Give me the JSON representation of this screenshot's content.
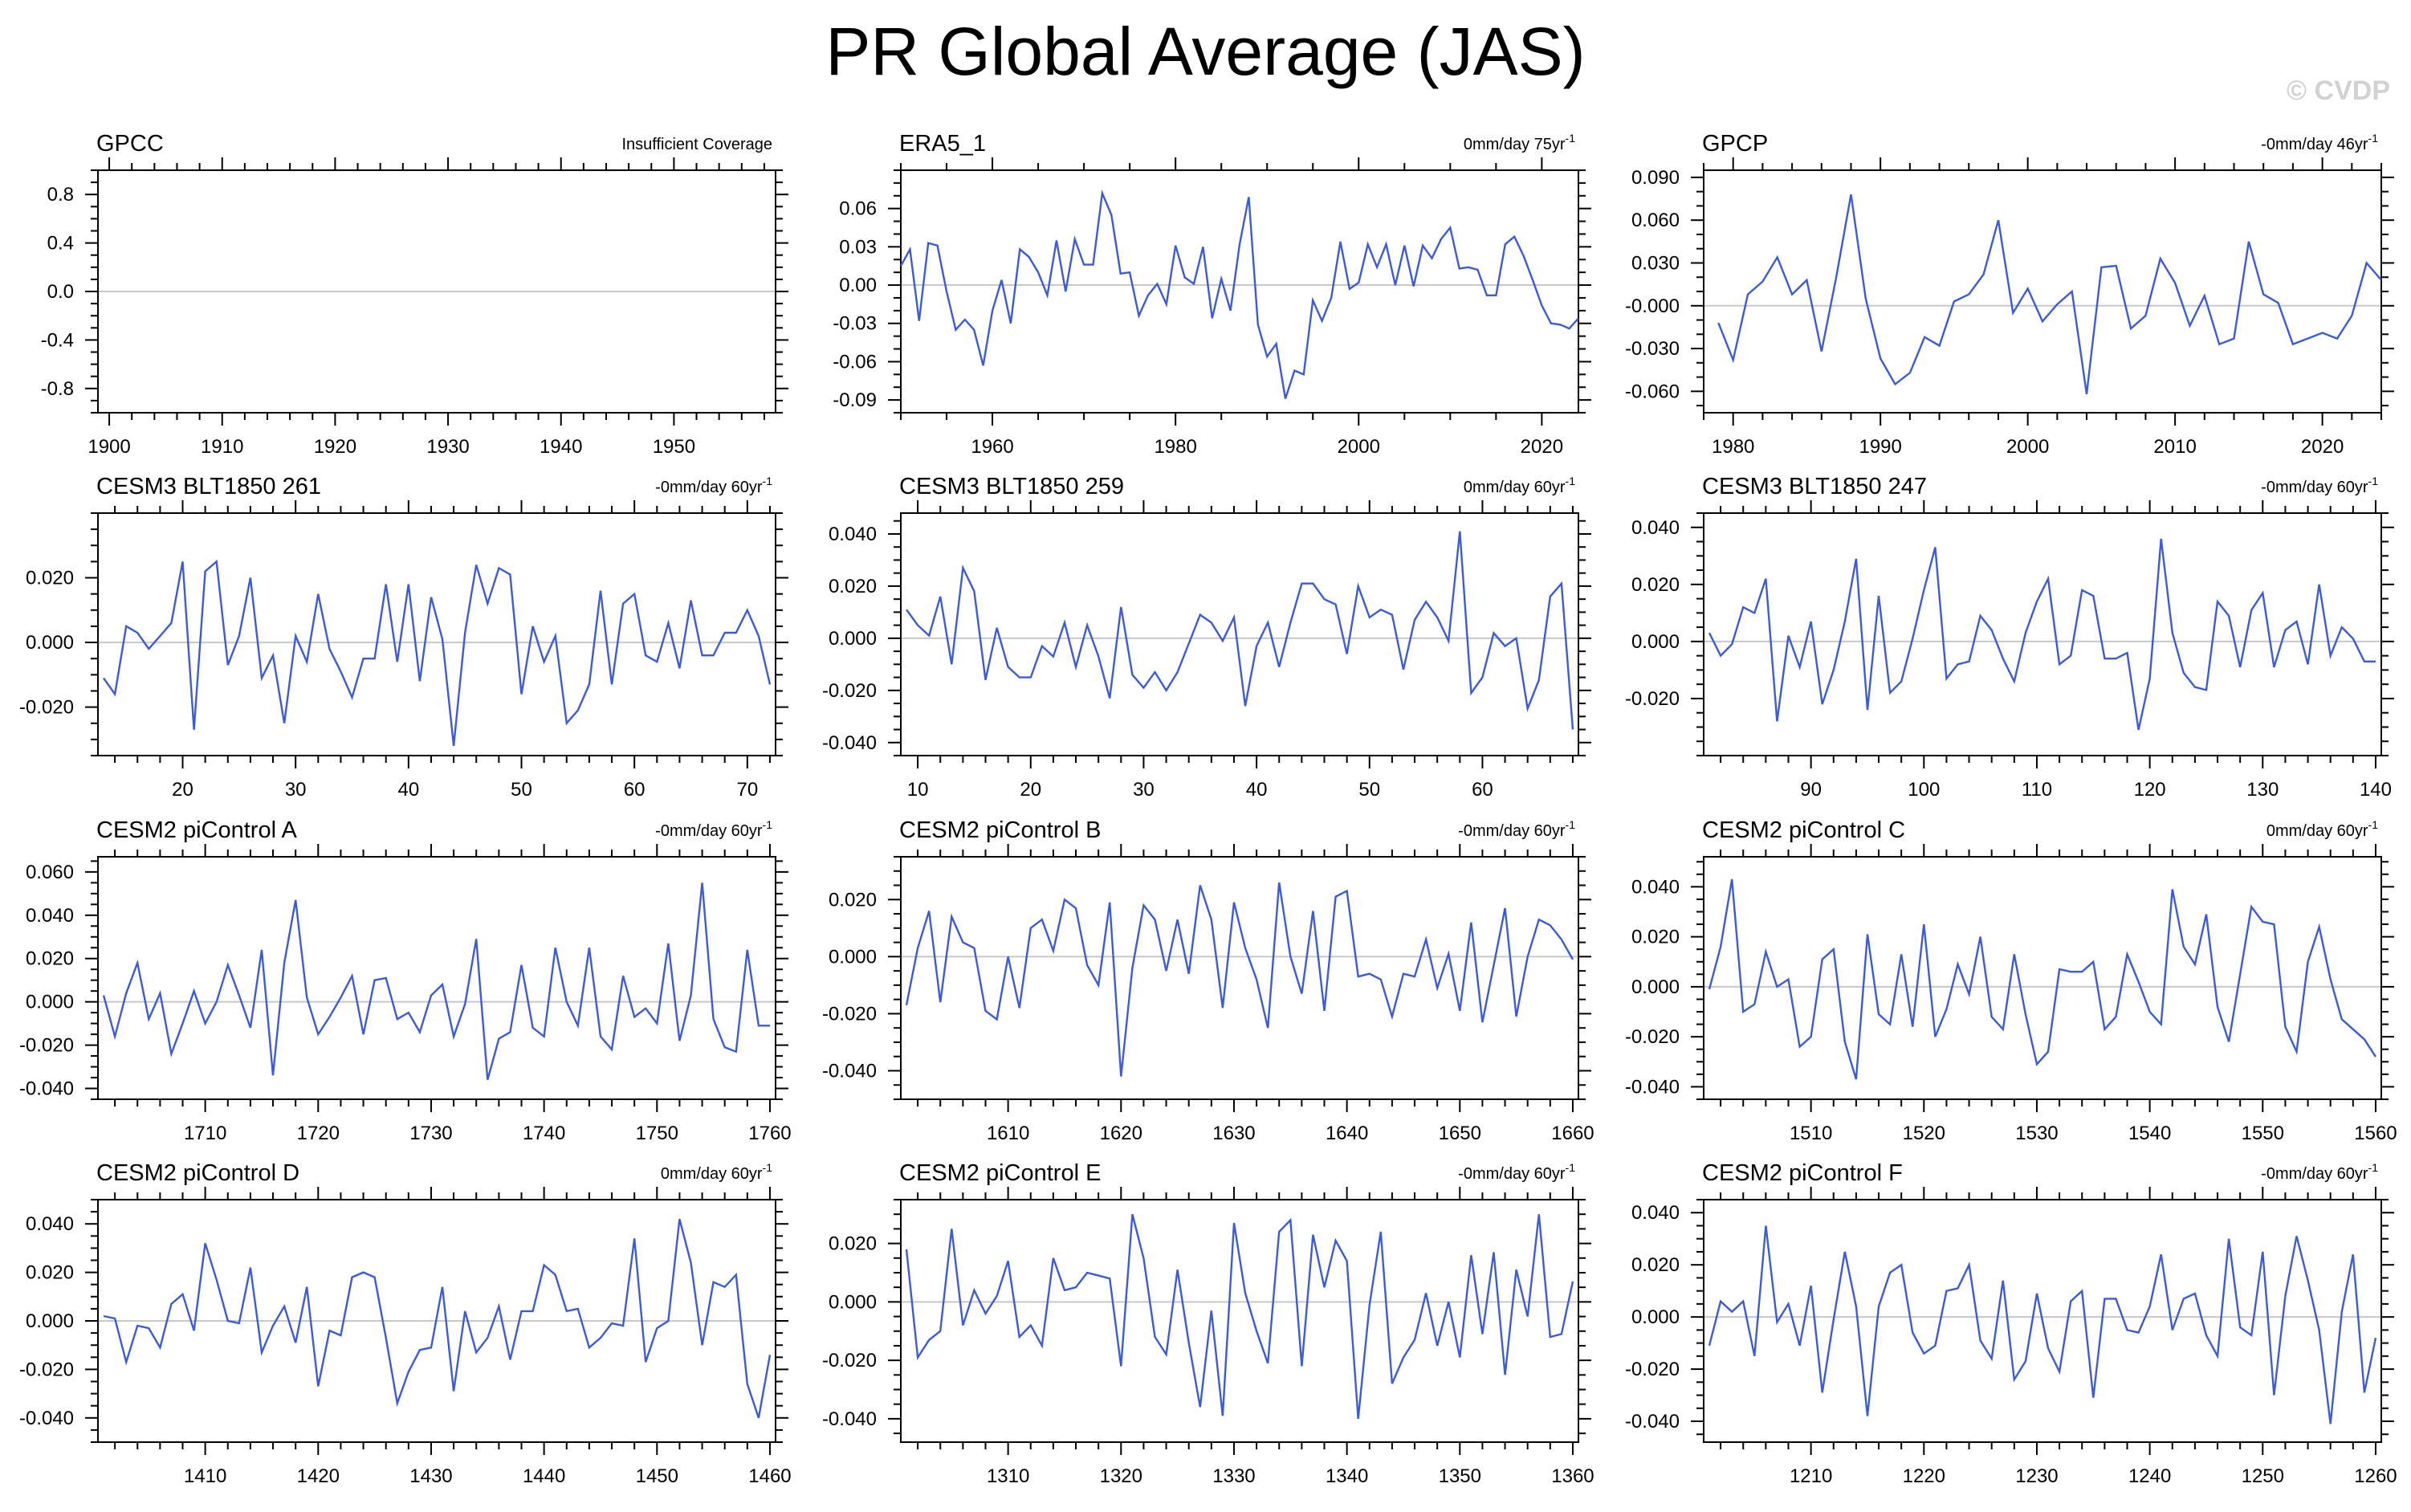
{
  "figure": {
    "title": "PR Global Average (JAS)",
    "watermark": "© CVDP",
    "line_color": "#3b5bdb",
    "zero_line_color": "#c8c8c8"
  },
  "chart_data": [
    {
      "type": "line",
      "title": "GPCC",
      "note": "Insufficient Coverage",
      "xlim": [
        1899,
        1959
      ],
      "ylim": [
        -1.0,
        1.0
      ],
      "yticks": [
        -0.8,
        -0.4,
        0.0,
        0.4,
        0.8
      ],
      "ytick_labels": [
        "-0.8",
        "-0.4",
        "0.0",
        "0.4",
        "0.8"
      ],
      "xticks": [
        1900,
        1910,
        1920,
        1930,
        1940,
        1950
      ],
      "xminor": 2,
      "yminor": 0.1,
      "x_start": 1900,
      "values": []
    },
    {
      "type": "line",
      "title": "ERA5_1",
      "note": "0mm/day 75yr",
      "note_sup": "-1",
      "xlim": [
        1950,
        2024
      ],
      "ylim": [
        -0.1,
        0.09
      ],
      "yticks": [
        -0.09,
        -0.06,
        -0.03,
        0.0,
        0.03,
        0.06
      ],
      "ytick_labels": [
        "-0.09",
        "-0.06",
        "-0.03",
        "0.00",
        "0.03",
        "0.06"
      ],
      "xticks": [
        1960,
        1980,
        2000,
        2020
      ],
      "xminor": 5,
      "yminor": 0.01,
      "x_start": 1950,
      "values": [
        0.015,
        0.028,
        -0.028,
        0.033,
        0.031,
        -0.005,
        -0.035,
        -0.027,
        -0.035,
        -0.063,
        -0.02,
        0.004,
        -0.03,
        0.028,
        0.022,
        0.01,
        -0.008,
        0.035,
        -0.005,
        0.036,
        0.016,
        0.016,
        0.072,
        0.055,
        0.009,
        0.01,
        -0.024,
        -0.008,
        0.001,
        -0.015,
        0.031,
        0.006,
        0.001,
        0.03,
        -0.026,
        0.005,
        -0.02,
        0.032,
        0.069,
        -0.031,
        -0.056,
        -0.046,
        -0.089,
        -0.067,
        -0.07,
        -0.012,
        -0.028,
        -0.01,
        0.034,
        -0.003,
        0.002,
        0.032,
        0.014,
        0.032,
        0.0,
        0.031,
        -0.001,
        0.031,
        0.021,
        0.036,
        0.045,
        0.013,
        0.014,
        0.012,
        -0.008,
        -0.008,
        0.032,
        0.038,
        0.023,
        0.004,
        -0.016,
        -0.03,
        -0.031,
        -0.034,
        -0.026
      ]
    },
    {
      "type": "line",
      "title": "GPCP",
      "note": "-0mm/day 46yr",
      "note_sup": "-1",
      "xlim": [
        1978,
        2024
      ],
      "ylim": [
        -0.075,
        0.095
      ],
      "yticks": [
        -0.06,
        -0.03,
        0.0,
        0.03,
        0.06,
        0.09
      ],
      "ytick_labels": [
        "-0.060",
        "-0.030",
        "-0.000",
        "0.030",
        "0.060",
        "0.090"
      ],
      "xticks": [
        1980,
        1990,
        2000,
        2010,
        2020
      ],
      "xminor": 2,
      "yminor": 0.01,
      "x_start": 1979,
      "values": [
        -0.012,
        -0.038,
        0.008,
        0.017,
        0.034,
        0.008,
        0.018,
        -0.032,
        0.02,
        0.078,
        0.005,
        -0.037,
        -0.055,
        -0.047,
        -0.022,
        -0.028,
        0.003,
        0.008,
        0.022,
        0.06,
        -0.005,
        0.012,
        -0.011,
        0.001,
        0.01,
        -0.062,
        0.027,
        0.028,
        -0.016,
        -0.007,
        0.033,
        0.016,
        -0.014,
        0.007,
        -0.027,
        -0.023,
        0.045,
        0.008,
        0.002,
        -0.027,
        -0.023,
        -0.019,
        -0.023,
        -0.007,
        0.03,
        0.018
      ]
    },
    {
      "type": "line",
      "title": "CESM3 BLT1850 261",
      "note": "-0mm/day 60yr",
      "note_sup": "-1",
      "xlim": [
        12.5,
        72.5
      ],
      "ylim": [
        -0.035,
        0.04
      ],
      "yticks": [
        -0.02,
        0.0,
        0.02
      ],
      "ytick_labels": [
        "-0.020",
        "0.000",
        "0.020"
      ],
      "xticks": [
        20,
        30,
        40,
        50,
        60,
        70
      ],
      "xminor": 2,
      "yminor": 0.005,
      "x_start": 13,
      "values": [
        -0.011,
        -0.016,
        0.005,
        0.003,
        -0.002,
        0.002,
        0.006,
        0.025,
        -0.027,
        0.022,
        0.025,
        -0.007,
        0.002,
        0.02,
        -0.011,
        -0.004,
        -0.025,
        0.002,
        -0.006,
        0.015,
        -0.002,
        -0.009,
        -0.017,
        -0.005,
        -0.005,
        0.018,
        -0.006,
        0.018,
        -0.012,
        0.014,
        0.001,
        -0.032,
        0.003,
        0.024,
        0.012,
        0.023,
        0.021,
        -0.016,
        0.005,
        -0.006,
        0.002,
        -0.025,
        -0.021,
        -0.013,
        0.016,
        -0.013,
        0.012,
        0.015,
        -0.004,
        -0.006,
        0.006,
        -0.008,
        0.013,
        -0.004,
        -0.004,
        0.003,
        0.003,
        0.01,
        0.002,
        -0.013
      ]
    },
    {
      "type": "line",
      "title": "CESM3 BLT1850 259",
      "note": "0mm/day 60yr",
      "note_sup": "-1",
      "xlim": [
        8.5,
        68.5
      ],
      "ylim": [
        -0.045,
        0.048
      ],
      "yticks": [
        -0.04,
        -0.02,
        0.0,
        0.02,
        0.04
      ],
      "ytick_labels": [
        "-0.040",
        "-0.020",
        "0.000",
        "0.020",
        "0.040"
      ],
      "xticks": [
        10,
        20,
        30,
        40,
        50,
        60
      ],
      "xminor": 2,
      "yminor": 0.005,
      "x_start": 9,
      "values": [
        0.011,
        0.005,
        0.001,
        0.016,
        -0.01,
        0.027,
        0.018,
        -0.016,
        0.004,
        -0.011,
        -0.015,
        -0.015,
        -0.003,
        -0.007,
        0.006,
        -0.011,
        0.005,
        -0.007,
        -0.023,
        0.012,
        -0.014,
        -0.019,
        -0.013,
        -0.02,
        -0.013,
        -0.002,
        0.009,
        0.006,
        -0.001,
        0.008,
        -0.026,
        -0.003,
        0.006,
        -0.011,
        0.006,
        0.021,
        0.021,
        0.015,
        0.013,
        -0.006,
        0.02,
        0.008,
        0.011,
        0.009,
        -0.012,
        0.007,
        0.014,
        0.008,
        -0.001,
        0.041,
        -0.021,
        -0.015,
        0.002,
        -0.003,
        0.0,
        -0.027,
        -0.016,
        0.016,
        0.021,
        -0.035
      ]
    },
    {
      "type": "line",
      "title": "CESM3 BLT1850 247",
      "note": "-0mm/day 60yr",
      "note_sup": "-1",
      "xlim": [
        80.5,
        140.5
      ],
      "ylim": [
        -0.04,
        0.045
      ],
      "yticks": [
        -0.02,
        0.0,
        0.02,
        0.04
      ],
      "ytick_labels": [
        "-0.020",
        "0.000",
        "0.020",
        "0.040"
      ],
      "xticks": [
        90,
        100,
        110,
        120,
        130,
        140
      ],
      "xminor": 2,
      "yminor": 0.005,
      "x_start": 81,
      "values": [
        0.003,
        -0.005,
        -0.001,
        0.012,
        0.01,
        0.022,
        -0.028,
        0.002,
        -0.009,
        0.007,
        -0.022,
        -0.01,
        0.007,
        0.029,
        -0.024,
        0.016,
        -0.018,
        -0.014,
        0.001,
        0.018,
        0.033,
        -0.013,
        -0.008,
        -0.007,
        0.009,
        0.004,
        -0.006,
        -0.014,
        0.003,
        0.014,
        0.022,
        -0.008,
        -0.005,
        0.018,
        0.016,
        -0.006,
        -0.006,
        -0.004,
        -0.031,
        -0.013,
        0.036,
        0.003,
        -0.011,
        -0.016,
        -0.017,
        0.014,
        0.009,
        -0.009,
        0.011,
        0.017,
        -0.009,
        0.004,
        0.007,
        -0.008,
        0.02,
        -0.005,
        0.005,
        0.001,
        -0.007,
        -0.007
      ]
    },
    {
      "type": "line",
      "title": "CESM2 piControl A",
      "note": "-0mm/day 60yr",
      "note_sup": "-1",
      "xlim": [
        1700.5,
        1760.5
      ],
      "ylim": [
        -0.045,
        0.067
      ],
      "yticks": [
        -0.04,
        -0.02,
        0.0,
        0.02,
        0.04,
        0.06
      ],
      "ytick_labels": [
        "-0.040",
        "-0.020",
        "0.000",
        "0.020",
        "0.040",
        "0.060"
      ],
      "xticks": [
        1710,
        1720,
        1730,
        1740,
        1750,
        1760
      ],
      "xminor": 2,
      "yminor": 0.005,
      "x_start": 1701,
      "values": [
        0.003,
        -0.016,
        0.004,
        0.018,
        -0.008,
        0.004,
        -0.024,
        -0.01,
        0.005,
        -0.01,
        0.0,
        0.017,
        0.003,
        -0.012,
        0.024,
        -0.034,
        0.018,
        0.047,
        0.002,
        -0.015,
        -0.007,
        0.002,
        0.012,
        -0.015,
        0.01,
        0.011,
        -0.008,
        -0.005,
        -0.014,
        0.003,
        0.008,
        -0.016,
        -0.001,
        0.029,
        -0.036,
        -0.017,
        -0.014,
        0.017,
        -0.012,
        -0.016,
        0.025,
        0.0,
        -0.011,
        0.025,
        -0.016,
        -0.022,
        0.012,
        -0.007,
        -0.003,
        -0.01,
        0.027,
        -0.018,
        0.003,
        0.055,
        -0.008,
        -0.021,
        -0.023,
        0.024,
        -0.011,
        -0.011
      ]
    },
    {
      "type": "line",
      "title": "CESM2 piControl B",
      "note": "-0mm/day 60yr",
      "note_sup": "-1",
      "xlim": [
        1600.5,
        1660.5
      ],
      "ylim": [
        -0.05,
        0.035
      ],
      "yticks": [
        -0.04,
        -0.02,
        0.0,
        0.02
      ],
      "ytick_labels": [
        "-0.040",
        "-0.020",
        "0.000",
        "0.020"
      ],
      "xticks": [
        1610,
        1620,
        1630,
        1640,
        1650,
        1660
      ],
      "xminor": 2,
      "yminor": 0.005,
      "x_start": 1601,
      "values": [
        -0.017,
        0.003,
        0.016,
        -0.016,
        0.014,
        0.005,
        0.003,
        -0.019,
        -0.022,
        0.0,
        -0.018,
        0.01,
        0.013,
        0.002,
        0.02,
        0.017,
        -0.003,
        -0.01,
        0.019,
        -0.042,
        -0.004,
        0.018,
        0.013,
        -0.005,
        0.013,
        -0.006,
        0.025,
        0.013,
        -0.018,
        0.019,
        0.003,
        -0.008,
        -0.025,
        0.026,
        0.0,
        -0.013,
        0.016,
        -0.019,
        0.021,
        0.023,
        -0.007,
        -0.006,
        -0.008,
        -0.021,
        -0.006,
        -0.007,
        0.006,
        -0.011,
        0.001,
        -0.019,
        0.012,
        -0.023,
        -0.003,
        0.017,
        -0.021,
        0.0,
        0.013,
        0.011,
        0.006,
        -0.001
      ]
    },
    {
      "type": "line",
      "title": "CESM2 piControl C",
      "note": "0mm/day 60yr",
      "note_sup": "-1",
      "xlim": [
        1500.5,
        1560.5
      ],
      "ylim": [
        -0.045,
        0.052
      ],
      "yticks": [
        -0.04,
        -0.02,
        0.0,
        0.02,
        0.04
      ],
      "ytick_labels": [
        "-0.040",
        "-0.020",
        "0.000",
        "0.020",
        "0.040"
      ],
      "xticks": [
        1510,
        1520,
        1530,
        1540,
        1550,
        1560
      ],
      "xminor": 2,
      "yminor": 0.005,
      "x_start": 1501,
      "values": [
        -0.001,
        0.016,
        0.043,
        -0.01,
        -0.007,
        0.014,
        0.0,
        0.003,
        -0.024,
        -0.02,
        0.011,
        0.015,
        -0.022,
        -0.037,
        0.021,
        -0.011,
        -0.015,
        0.013,
        -0.016,
        0.025,
        -0.02,
        -0.009,
        0.009,
        -0.003,
        0.02,
        -0.012,
        -0.017,
        0.013,
        -0.011,
        -0.031,
        -0.026,
        0.007,
        0.006,
        0.006,
        0.01,
        -0.017,
        -0.012,
        0.013,
        0.002,
        -0.01,
        -0.015,
        0.039,
        0.016,
        0.009,
        0.029,
        -0.008,
        -0.022,
        0.005,
        0.032,
        0.026,
        0.025,
        -0.016,
        -0.026,
        0.01,
        0.024,
        0.003,
        -0.013,
        -0.017,
        -0.021,
        -0.028
      ]
    },
    {
      "type": "line",
      "title": "CESM2 piControl D",
      "note": "0mm/day 60yr",
      "note_sup": "-1",
      "xlim": [
        1400.5,
        1460.5
      ],
      "ylim": [
        -0.05,
        0.05
      ],
      "yticks": [
        -0.04,
        -0.02,
        0.0,
        0.02,
        0.04
      ],
      "ytick_labels": [
        "-0.040",
        "-0.020",
        "0.000",
        "0.020",
        "0.040"
      ],
      "xticks": [
        1410,
        1420,
        1430,
        1440,
        1450,
        1460
      ],
      "xminor": 2,
      "yminor": 0.005,
      "x_start": 1401,
      "values": [
        0.002,
        0.001,
        -0.017,
        -0.002,
        -0.003,
        -0.011,
        0.007,
        0.011,
        -0.004,
        0.032,
        0.017,
        0.0,
        -0.001,
        0.022,
        -0.013,
        -0.002,
        0.006,
        -0.009,
        0.014,
        -0.027,
        -0.004,
        -0.006,
        0.018,
        0.02,
        0.018,
        -0.007,
        -0.034,
        -0.021,
        -0.012,
        -0.011,
        0.014,
        -0.029,
        0.004,
        -0.013,
        -0.007,
        0.006,
        -0.016,
        0.004,
        0.004,
        0.023,
        0.019,
        0.004,
        0.005,
        -0.011,
        -0.007,
        -0.001,
        -0.002,
        0.034,
        -0.017,
        -0.003,
        0.0,
        0.042,
        0.024,
        -0.01,
        0.016,
        0.014,
        0.019,
        -0.026,
        -0.04,
        -0.014
      ]
    },
    {
      "type": "line",
      "title": "CESM2 piControl E",
      "note": "-0mm/day 60yr",
      "note_sup": "-1",
      "xlim": [
        1300.5,
        1360.5
      ],
      "ylim": [
        -0.048,
        0.035
      ],
      "yticks": [
        -0.04,
        -0.02,
        0.0,
        0.02
      ],
      "ytick_labels": [
        "-0.040",
        "-0.020",
        "0.000",
        "0.020"
      ],
      "xticks": [
        1310,
        1320,
        1330,
        1340,
        1350,
        1360
      ],
      "xminor": 2,
      "yminor": 0.005,
      "x_start": 1301,
      "values": [
        0.018,
        -0.019,
        -0.013,
        -0.01,
        0.025,
        -0.008,
        0.004,
        -0.004,
        0.002,
        0.014,
        -0.012,
        -0.008,
        -0.015,
        0.015,
        0.004,
        0.005,
        0.01,
        0.009,
        0.008,
        -0.022,
        0.03,
        0.015,
        -0.012,
        -0.018,
        0.011,
        -0.014,
        -0.036,
        -0.003,
        -0.039,
        0.027,
        0.003,
        -0.01,
        -0.021,
        0.024,
        0.028,
        -0.022,
        0.023,
        0.005,
        0.021,
        0.014,
        -0.04,
        -0.001,
        0.024,
        -0.028,
        -0.019,
        -0.013,
        0.003,
        -0.015,
        0.0,
        -0.019,
        0.016,
        -0.011,
        0.017,
        -0.025,
        0.011,
        -0.005,
        0.03,
        -0.012,
        -0.011,
        0.007
      ]
    },
    {
      "type": "line",
      "title": "CESM2 piControl F",
      "note": "-0mm/day 60yr",
      "note_sup": "-1",
      "xlim": [
        1200.5,
        1260.5
      ],
      "ylim": [
        -0.048,
        0.045
      ],
      "yticks": [
        -0.04,
        -0.02,
        0.0,
        0.02,
        0.04
      ],
      "ytick_labels": [
        "-0.040",
        "-0.020",
        "0.000",
        "0.020",
        "0.040"
      ],
      "xticks": [
        1210,
        1220,
        1230,
        1240,
        1250,
        1260
      ],
      "xminor": 2,
      "yminor": 0.005,
      "x_start": 1201,
      "values": [
        -0.011,
        0.006,
        0.002,
        0.006,
        -0.015,
        0.035,
        -0.002,
        0.005,
        -0.011,
        0.012,
        -0.029,
        -0.001,
        0.025,
        0.004,
        -0.038,
        0.004,
        0.017,
        0.02,
        -0.006,
        -0.014,
        -0.011,
        0.01,
        0.011,
        0.02,
        -0.009,
        -0.016,
        0.014,
        -0.024,
        -0.017,
        0.009,
        -0.012,
        -0.021,
        0.006,
        0.01,
        -0.031,
        0.007,
        0.007,
        -0.005,
        -0.006,
        0.004,
        0.024,
        -0.005,
        0.007,
        0.009,
        -0.007,
        -0.015,
        0.03,
        -0.004,
        -0.007,
        0.025,
        -0.03,
        0.008,
        0.031,
        0.014,
        -0.005,
        -0.041,
        0.002,
        0.024,
        -0.029,
        -0.008
      ]
    }
  ]
}
